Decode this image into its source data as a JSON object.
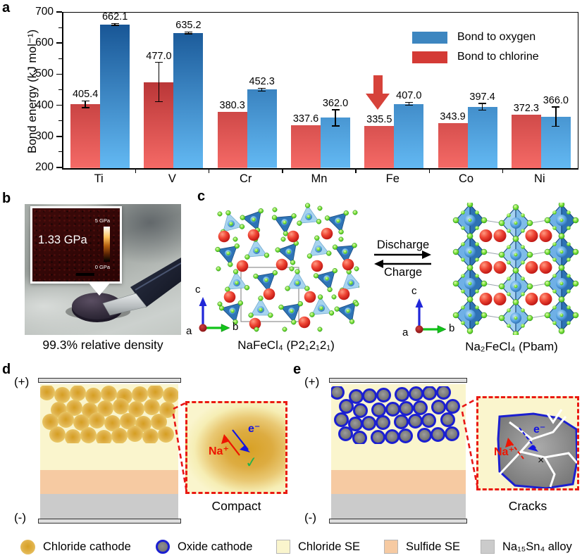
{
  "panels": {
    "a": "a",
    "b": "b",
    "c": "c",
    "d": "d",
    "e": "e"
  },
  "chart_data": {
    "type": "bar",
    "title": "",
    "ylabel": "Bond energy (kJ mol⁻¹)",
    "xlabel": "",
    "ylim": [
      200,
      700
    ],
    "yticks": [
      200,
      300,
      400,
      500,
      600,
      700
    ],
    "grid": false,
    "legend_position": "top-right",
    "categories": [
      "Ti",
      "V",
      "Cr",
      "Mn",
      "Fe",
      "Co",
      "Ni"
    ],
    "series": [
      {
        "name": "Bond to oxygen",
        "position": "right",
        "color": "#3d86c0",
        "gradient_top": "#124e8e",
        "gradient_bottom": "#63b9f3",
        "values": [
          662.1,
          635.2,
          452.3,
          362.0,
          407.0,
          397.4,
          366.0
        ],
        "errors": [
          3,
          3,
          5,
          26,
          5,
          11,
          31
        ]
      },
      {
        "name": "Bond to chlorine",
        "position": "left",
        "color": "#d43a35",
        "gradient_top": "#8a0d12",
        "gradient_bottom": "#f56a66",
        "values": [
          405.4,
          477.0,
          380.3,
          337.6,
          335.5,
          343.9,
          372.3
        ],
        "errors": [
          11,
          63,
          0,
          0,
          0,
          0,
          0
        ]
      }
    ],
    "annotation": {
      "type": "down-arrow",
      "category": "Fe",
      "color": "#d6423a"
    }
  },
  "panel_b": {
    "inset_value": "1.33 GPa",
    "scale_max": "5 GPa",
    "scale_min": "0 GPa",
    "caption": "99.3% relative density"
  },
  "panel_c": {
    "left_caption": "NaFeCl₄ (P2₁2₁2₁)",
    "right_caption": "Na₂FeCl₄ (Pbam)",
    "discharge": "Discharge",
    "charge": "Charge",
    "axis_a": "a",
    "axis_b": "b",
    "axis_c": "c"
  },
  "panel_d": {
    "plus": "(+)",
    "minus": "(-)",
    "na_label": "Na⁺",
    "e_label": "e⁻",
    "check": "✓",
    "caption": "Compact"
  },
  "panel_e": {
    "plus": "(+)",
    "minus": "(-)",
    "na_label": "Na⁺",
    "e_label": "e⁻",
    "cross": "×",
    "caption": "Cracks"
  },
  "legend_bottom": {
    "items": [
      {
        "label": "Chloride cathode",
        "swatch": "gold-circle",
        "color": "#dfaf44"
      },
      {
        "label": "Oxide cathode",
        "swatch": "gray-circle-blue-ring",
        "color": "#757575",
        "ring": "#1b1fd1"
      },
      {
        "label": "Chloride SE",
        "swatch": "square",
        "color": "#faf5cd"
      },
      {
        "label": "Sulfide SE",
        "swatch": "square",
        "color": "#f6caa2"
      },
      {
        "label": "Na₁₅Sn₄ alloy",
        "swatch": "square",
        "color": "#cbcbcb"
      }
    ]
  },
  "colors": {
    "chloride_se": "#faf5cd",
    "sulfide_se": "#f6caa2",
    "alloy": "#cbcbcb",
    "oxide_ring_blue": "#1b1fd1",
    "connector_red": "#e81616",
    "na_red": "#ee1500",
    "electron_blue": "#1414e0"
  }
}
